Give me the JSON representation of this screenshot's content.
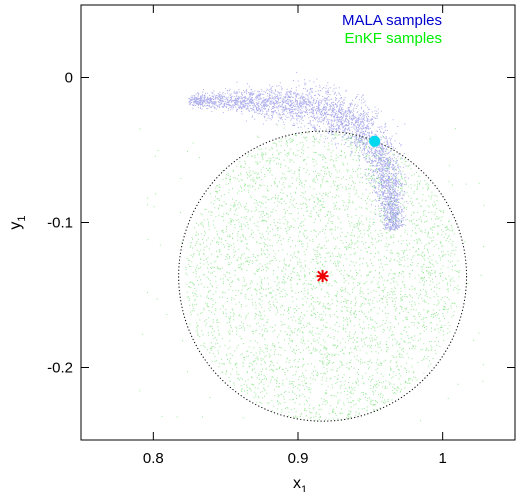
{
  "chart_data": {
    "type": "scatter",
    "xlabel": "x",
    "xlabel_sub": "1",
    "ylabel": "y",
    "ylabel_sub": "1",
    "xlim": [
      0.75,
      1.05
    ],
    "ylim": [
      -0.25,
      0.05
    ],
    "xticks": [
      0.8,
      0.9,
      1.0
    ],
    "xtick_labels": [
      "0.8",
      "0.9",
      "1"
    ],
    "yticks": [
      0.0,
      -0.1,
      -0.2
    ],
    "ytick_labels": [
      "0",
      "-0.1",
      "-0.2"
    ],
    "grid": false,
    "legend_position": "top-right",
    "series": [
      {
        "name": "MALA samples",
        "color": "#1a1acc",
        "shape": "arc-band",
        "path": [
          [
            0.824,
            -0.016
          ],
          [
            0.86,
            -0.016
          ],
          [
            0.9,
            -0.019
          ],
          [
            0.93,
            -0.026
          ],
          [
            0.948,
            -0.038
          ],
          [
            0.958,
            -0.055
          ],
          [
            0.963,
            -0.078
          ],
          [
            0.966,
            -0.105
          ]
        ],
        "approx_spread": [
          0.002,
          0.004,
          0.007,
          0.008,
          0.007,
          0.006,
          0.005,
          0.003
        ]
      },
      {
        "name": "EnKF samples",
        "color": "#22cc22",
        "shape": "disc",
        "center": [
          0.917,
          -0.137
        ],
        "approx_radius_x": 0.095,
        "approx_radius_y": 0.1
      }
    ],
    "circle": {
      "center": [
        0.917,
        -0.137
      ],
      "radius_x": 0.0995,
      "radius_y": 0.1,
      "style": "dotted",
      "color": "#000000"
    },
    "markers": [
      {
        "kind": "asterisk",
        "x": 0.917,
        "y": -0.137,
        "color": "#ee0000"
      },
      {
        "kind": "filled-circle",
        "x": 0.953,
        "y": -0.044,
        "color": "#00d8f0"
      }
    ]
  }
}
